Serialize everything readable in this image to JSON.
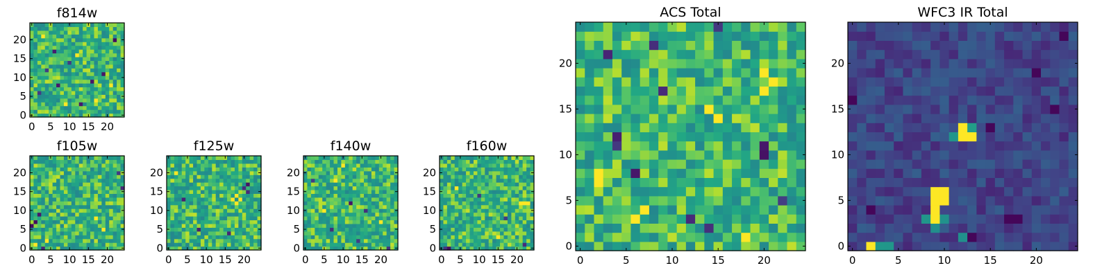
{
  "colors": {
    "viridis_dark": "#440154",
    "viridis_mid": "#21918c",
    "viridis_light": "#fde725",
    "frame": "#000000"
  },
  "chart_data": [
    {
      "id": "f814w",
      "type": "heatmap",
      "title": "f814w",
      "grid": [
        25,
        25
      ],
      "palette": "high",
      "dark_cells": [
        [
          4,
          12
        ],
        [
          7,
          8
        ],
        [
          10,
          14
        ],
        [
          19,
          11
        ],
        [
          13,
          3
        ],
        [
          22,
          20
        ],
        [
          6,
          17
        ],
        [
          16,
          9
        ],
        [
          2,
          6
        ]
      ],
      "hot_cells": [
        [
          3,
          21
        ],
        [
          12,
          16
        ],
        [
          17,
          4
        ],
        [
          9,
          3
        ],
        [
          21,
          8
        ]
      ],
      "xticks": [
        "0",
        "5",
        "10",
        "15",
        "20"
      ],
      "yticks": [
        "0",
        "5",
        "10",
        "15",
        "20"
      ],
      "xlim": [
        -0.5,
        24.5
      ],
      "ylim": [
        -0.5,
        24.5
      ]
    },
    {
      "id": "f105w",
      "type": "heatmap",
      "title": "f105w",
      "grid": [
        25,
        25
      ],
      "palette": "high",
      "dark_cells": [
        [
          0,
          6
        ],
        [
          1,
          7
        ],
        [
          2,
          9
        ],
        [
          24,
          16
        ],
        [
          3,
          0
        ],
        [
          23,
          20
        ]
      ],
      "hot_cells": [
        [
          4,
          2
        ],
        [
          17,
          8
        ],
        [
          19,
          5
        ],
        [
          1,
          1
        ]
      ],
      "xticks": [
        "0",
        "5",
        "10",
        "15",
        "20"
      ],
      "yticks": [
        "0",
        "5",
        "10",
        "15",
        "20"
      ],
      "xlim": [
        -0.5,
        24.5
      ],
      "ylim": [
        -0.5,
        24.5
      ]
    },
    {
      "id": "f125w",
      "type": "heatmap",
      "title": "f125w",
      "grid": [
        25,
        25
      ],
      "palette": "high",
      "dark_cells": [
        [
          20,
          16
        ],
        [
          21,
          17
        ],
        [
          21,
          15
        ],
        [
          8,
          5
        ],
        [
          16,
          4
        ],
        [
          4,
          13
        ]
      ],
      "hot_cells": [
        [
          17,
          13
        ],
        [
          18,
          14
        ],
        [
          19,
          13
        ],
        [
          18,
          12
        ],
        [
          2,
          20
        ]
      ],
      "xticks": [
        "0",
        "5",
        "10",
        "15",
        "20"
      ],
      "yticks": [
        "0",
        "5",
        "10",
        "15",
        "20"
      ],
      "xlim": [
        -0.5,
        24.5
      ],
      "ylim": [
        -0.5,
        24.5
      ]
    },
    {
      "id": "f140w",
      "type": "heatmap",
      "title": "f140w",
      "grid": [
        25,
        25
      ],
      "palette": "high",
      "dark_cells": [
        [
          12,
          12
        ],
        [
          7,
          5
        ],
        [
          16,
          10
        ],
        [
          22,
          0
        ],
        [
          2,
          18
        ],
        [
          14,
          2
        ]
      ],
      "hot_cells": [
        [
          8,
          18
        ],
        [
          20,
          7
        ],
        [
          5,
          10
        ],
        [
          10,
          22
        ]
      ],
      "xticks": [
        "0",
        "5",
        "10",
        "15",
        "20"
      ],
      "yticks": [
        "0",
        "5",
        "10",
        "15",
        "20"
      ],
      "xlim": [
        -0.5,
        24.5
      ],
      "ylim": [
        -0.5,
        24.5
      ]
    },
    {
      "id": "f160w",
      "type": "heatmap",
      "title": "f160w",
      "grid": [
        25,
        25
      ],
      "palette": "high",
      "dark_cells": [
        [
          10,
          14
        ],
        [
          1,
          0
        ],
        [
          2,
          0
        ],
        [
          22,
          1
        ],
        [
          17,
          8
        ]
      ],
      "hot_cells": [
        [
          21,
          12
        ],
        [
          22,
          12
        ],
        [
          23,
          12
        ],
        [
          4,
          16
        ],
        [
          15,
          3
        ]
      ],
      "xticks": [
        "0",
        "5",
        "10",
        "15",
        "20"
      ],
      "yticks": [
        "0",
        "5",
        "10",
        "15",
        "20"
      ],
      "xlim": [
        -0.5,
        24.5
      ],
      "ylim": [
        -0.5,
        24.5
      ]
    },
    {
      "id": "acs-total",
      "type": "heatmap",
      "title": "ACS Total",
      "grid": [
        25,
        25
      ],
      "palette": "high",
      "dark_cells": [
        [
          15,
          24
        ],
        [
          8,
          22
        ],
        [
          4,
          12
        ],
        [
          4,
          11
        ],
        [
          6,
          8
        ],
        [
          20,
          11
        ],
        [
          20,
          10
        ],
        [
          22,
          5
        ],
        [
          14,
          2
        ],
        [
          12,
          3
        ],
        [
          9,
          17
        ],
        [
          3,
          21
        ]
      ],
      "hot_cells": [
        [
          20,
          19
        ],
        [
          21,
          18
        ],
        [
          20,
          17
        ],
        [
          2,
          8
        ],
        [
          2,
          7
        ],
        [
          7,
          4
        ],
        [
          6,
          3
        ],
        [
          18,
          1
        ],
        [
          15,
          14
        ],
        [
          14,
          15
        ]
      ],
      "xticks": [
        "0",
        "5",
        "10",
        "15",
        "20"
      ],
      "yticks": [
        "0",
        "5",
        "10",
        "15",
        "20"
      ],
      "xlim": [
        -0.5,
        24.5
      ],
      "ylim": [
        -0.5,
        24.5
      ]
    },
    {
      "id": "wfc3-ir-total",
      "type": "heatmap",
      "title": "WFC3 IR Total",
      "grid": [
        25,
        25
      ],
      "palette": "low",
      "dark_cells": [
        [
          23,
          23
        ],
        [
          20,
          19
        ],
        [
          0,
          16
        ],
        [
          22,
          15
        ],
        [
          15,
          13
        ],
        [
          2,
          4
        ],
        [
          17,
          3
        ],
        [
          18,
          3
        ],
        [
          13,
          1
        ]
      ],
      "hot_cells": [
        [
          9,
          6
        ],
        [
          10,
          6
        ],
        [
          9,
          5
        ],
        [
          10,
          5
        ],
        [
          9,
          4
        ],
        [
          9,
          3
        ],
        [
          12,
          13
        ],
        [
          12,
          12
        ],
        [
          13,
          12
        ],
        [
          2,
          0
        ]
      ],
      "warm_cells": [
        [
          13,
          13
        ],
        [
          11,
          12
        ],
        [
          8,
          3
        ],
        [
          10,
          3
        ],
        [
          9,
          2
        ],
        [
          3,
          0
        ],
        [
          4,
          0
        ],
        [
          12,
          1
        ]
      ],
      "xticks": [
        "0",
        "5",
        "10",
        "15",
        "20"
      ],
      "yticks": [
        "0",
        "5",
        "10",
        "15",
        "20"
      ],
      "xlim": [
        -0.5,
        24.5
      ],
      "ylim": [
        -0.5,
        24.5
      ]
    }
  ]
}
